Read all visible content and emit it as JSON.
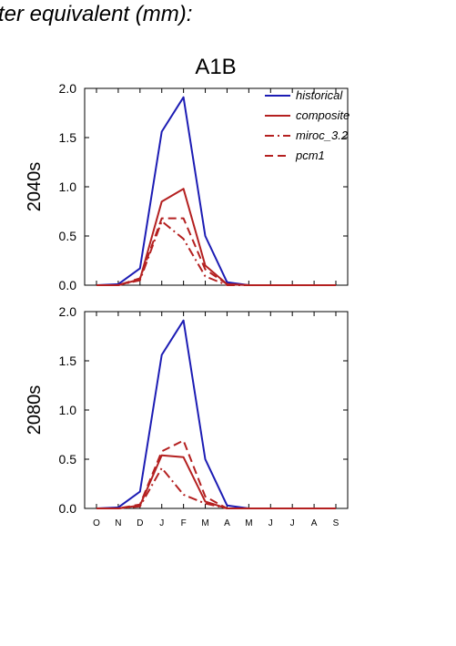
{
  "page": {
    "title": "ter equivalent (mm):"
  },
  "chart_data": [
    {
      "type": "line",
      "title": "A1B",
      "ylabel": "2040s",
      "categories": [
        "O",
        "N",
        "D",
        "J",
        "F",
        "M",
        "A",
        "M",
        "J",
        "J",
        "A",
        "S"
      ],
      "ylim": [
        0,
        2.0
      ],
      "yticks": [
        "0.0",
        "0.5",
        "1.0",
        "1.5",
        "2.0"
      ],
      "legend_position": "top-right",
      "series": [
        {
          "name": "historical",
          "color": "#1c1cb4",
          "dash": "solid",
          "values": [
            0.0,
            0.01,
            0.17,
            1.56,
            1.91,
            0.5,
            0.03,
            0.0,
            0.0,
            0.0,
            0.0,
            0.0
          ]
        },
        {
          "name": "composite",
          "color": "#b42020",
          "dash": "solid",
          "values": [
            0.0,
            0.0,
            0.06,
            0.85,
            0.98,
            0.2,
            0.01,
            0.0,
            0.0,
            0.0,
            0.0,
            0.0
          ]
        },
        {
          "name": "miroc_3.2",
          "color": "#b42020",
          "dash": "dashdot",
          "values": [
            0.0,
            0.0,
            0.05,
            0.65,
            0.47,
            0.09,
            0.0,
            0.0,
            0.0,
            0.0,
            0.0,
            0.0
          ]
        },
        {
          "name": "pcm1",
          "color": "#b42020",
          "dash": "dash",
          "values": [
            0.0,
            0.0,
            0.07,
            0.68,
            0.68,
            0.16,
            0.01,
            0.0,
            0.0,
            0.0,
            0.0,
            0.0
          ]
        }
      ]
    },
    {
      "type": "line",
      "title": "",
      "ylabel": "2080s",
      "categories": [
        "O",
        "N",
        "D",
        "J",
        "F",
        "M",
        "A",
        "M",
        "J",
        "J",
        "A",
        "S"
      ],
      "ylim": [
        0,
        2.0
      ],
      "yticks": [
        "0.0",
        "0.5",
        "1.0",
        "1.5",
        "2.0"
      ],
      "series": [
        {
          "name": "historical",
          "color": "#1c1cb4",
          "dash": "solid",
          "values": [
            0.0,
            0.01,
            0.17,
            1.56,
            1.91,
            0.5,
            0.03,
            0.0,
            0.0,
            0.0,
            0.0,
            0.0
          ]
        },
        {
          "name": "composite",
          "color": "#b42020",
          "dash": "solid",
          "values": [
            0.0,
            0.0,
            0.03,
            0.54,
            0.52,
            0.07,
            0.0,
            0.0,
            0.0,
            0.0,
            0.0,
            0.0
          ]
        },
        {
          "name": "miroc_3.2",
          "color": "#b42020",
          "dash": "dashdot",
          "values": [
            0.0,
            0.0,
            0.02,
            0.41,
            0.14,
            0.05,
            0.0,
            0.0,
            0.0,
            0.0,
            0.0,
            0.0
          ]
        },
        {
          "name": "pcm1",
          "color": "#b42020",
          "dash": "dash",
          "values": [
            0.0,
            0.0,
            0.04,
            0.58,
            0.69,
            0.12,
            0.0,
            0.0,
            0.0,
            0.0,
            0.0,
            0.0
          ]
        }
      ]
    }
  ]
}
